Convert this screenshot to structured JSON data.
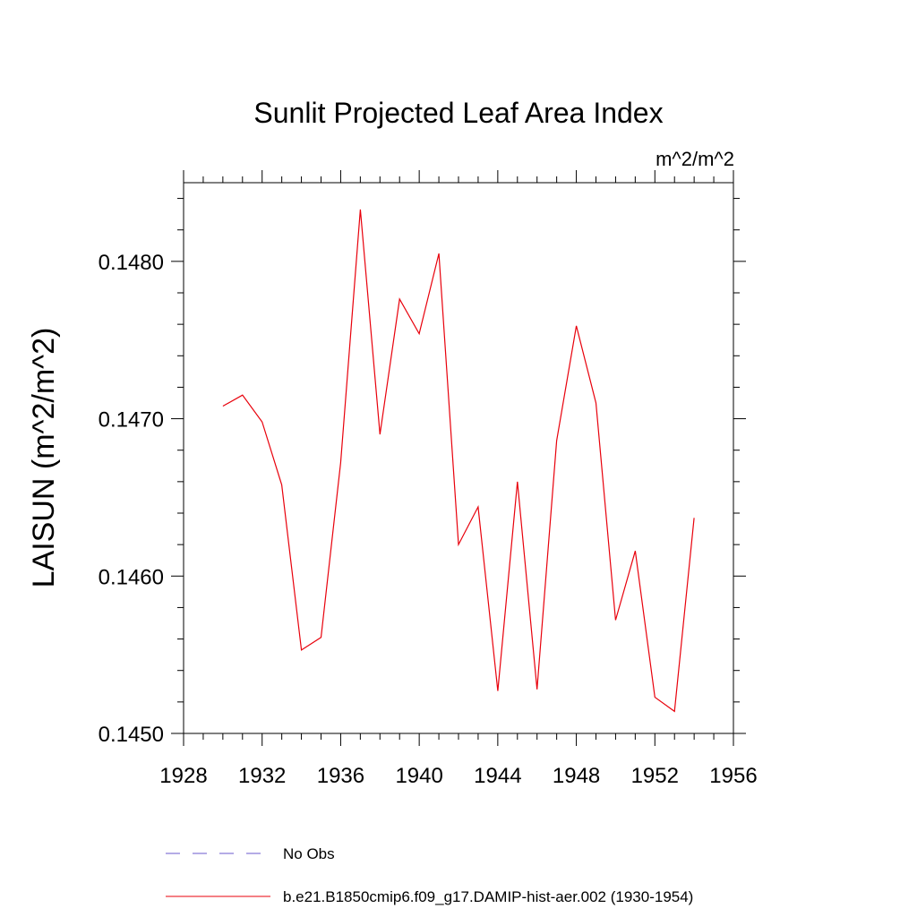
{
  "chart_data": {
    "type": "line",
    "title": "Sunlit Projected Leaf Area Index",
    "units": "m^2/m^2",
    "ylabel": "LAISUN  (m^2/m^2)",
    "xlabel": "",
    "xlim": [
      1928,
      1956
    ],
    "ylim": [
      0.145,
      0.1485
    ],
    "x_ticks": [
      1928,
      1932,
      1936,
      1940,
      1944,
      1948,
      1952,
      1956
    ],
    "x_tick_labels": [
      "1928",
      "1932",
      "1936",
      "1940",
      "1944",
      "1948",
      "1952",
      "1956"
    ],
    "y_ticks": [
      0.145,
      0.146,
      0.147,
      0.148
    ],
    "y_tick_labels": [
      "0.1450",
      "0.1460",
      "0.1470",
      "0.1480"
    ],
    "grid": false,
    "legend_position": "bottom",
    "series": [
      {
        "name": "No Obs",
        "color": "#6a5acd",
        "style": "dashed",
        "x": [],
        "values": []
      },
      {
        "name": "b.e21.B1850cmip6.f09_g17.DAMIP-hist-aer.002 (1930-1954)",
        "color": "#e8000b",
        "style": "solid",
        "x": [
          1930,
          1931,
          1932,
          1933,
          1934,
          1935,
          1936,
          1937,
          1938,
          1939,
          1940,
          1941,
          1942,
          1943,
          1944,
          1945,
          1946,
          1947,
          1948,
          1949,
          1950,
          1951,
          1952,
          1953,
          1954
        ],
        "values": [
          0.14708,
          0.14715,
          0.14698,
          0.14658,
          0.14553,
          0.14561,
          0.14672,
          0.14833,
          0.1469,
          0.14776,
          0.14754,
          0.14805,
          0.1462,
          0.14644,
          0.14527,
          0.1466,
          0.14528,
          0.14686,
          0.14759,
          0.1471,
          0.14572,
          0.14616,
          0.14523,
          0.14514,
          0.14637
        ]
      }
    ]
  }
}
